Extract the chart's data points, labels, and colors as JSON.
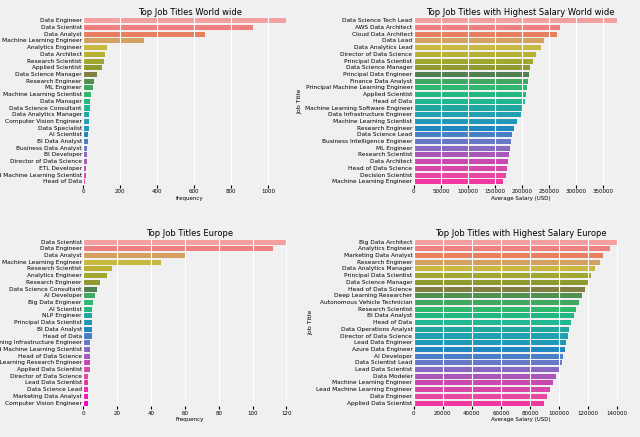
{
  "ww_titles": [
    "Data Engineer",
    "Data Scientist",
    "Data Analyst",
    "Machine Learning Engineer",
    "Analytics Engineer",
    "Data Architect",
    "Research Scientist",
    "Applied Scientist",
    "Data Science Manager",
    "Research Engineer",
    "ML Engineer",
    "Machine Learning Scientist",
    "Data Manager",
    "Data Science Consultant",
    "Data Analytics Manager",
    "Computer Vision Engineer",
    "Data Specialist",
    "AI Scientist",
    "BI Data Analyst",
    "Business Data Analyst",
    "BI Developer",
    "Director of Data Science",
    "ETL Developer",
    "Applied Machine Learning Scientist",
    "Head of Data"
  ],
  "ww_values": [
    1100,
    920,
    660,
    330,
    130,
    120,
    110,
    100,
    75,
    60,
    55,
    40,
    38,
    35,
    33,
    32,
    30,
    28,
    25,
    23,
    20,
    18,
    16,
    14,
    12
  ],
  "ww_colors": [
    "#f4a0a0",
    "#f08080",
    "#e88060",
    "#d4a060",
    "#c8b840",
    "#b8b030",
    "#a0a830",
    "#909830",
    "#808040",
    "#509050",
    "#40a860",
    "#30b870",
    "#20b880",
    "#20b890",
    "#20a8a0",
    "#20a0b0",
    "#2098b8",
    "#2088c0",
    "#4880c8",
    "#6878c8",
    "#8868c0",
    "#a858b8",
    "#c848b0",
    "#d848a8",
    "#e848a0"
  ],
  "ww_sal_titles": [
    "Data Science Tech Lead",
    "AWS Data Architect",
    "Cloud Data Architect",
    "Data Lead",
    "Data Analytics Lead",
    "Director of Data Science",
    "Principal Data Scientist",
    "Data Science Manager",
    "Principal Data Engineer",
    "Finance Data Analyst",
    "Principal Machine Learning Engineer",
    "Applied Scientist",
    "Head of Data",
    "Machine Learning Software Engineer",
    "Data Infrastructure Engineer",
    "Machine Learning Scientist",
    "Research Engineer",
    "Data Science Lead",
    "Business Intelligence Engineer",
    "ML Engineer",
    "Research Scientist",
    "Data Architect",
    "Head of Data Science",
    "Decision Scientist",
    "Machine Learning Engineer"
  ],
  "ww_sal_values": [
    375000,
    270000,
    265000,
    240000,
    235000,
    225000,
    220000,
    215000,
    212000,
    210000,
    208000,
    207000,
    205000,
    200000,
    198000,
    190000,
    185000,
    182000,
    180000,
    178000,
    176000,
    174000,
    172000,
    170000,
    165000
  ],
  "ww_sal_colors": [
    "#f4a0a0",
    "#f08080",
    "#e88060",
    "#d4a060",
    "#c8b840",
    "#b8b030",
    "#a0a830",
    "#909830",
    "#508050",
    "#40a860",
    "#30b870",
    "#20b880",
    "#20b890",
    "#20a8a0",
    "#20a0b0",
    "#2098b8",
    "#2088c0",
    "#4880c8",
    "#6878c8",
    "#8868c0",
    "#a858b8",
    "#c848b0",
    "#d848a8",
    "#e848a0",
    "#f038a0"
  ],
  "eu_titles": [
    "Data Scientist",
    "Data Engineer",
    "Data Analyst",
    "Machine Learning Engineer",
    "Research Scientist",
    "Analytics Engineer",
    "Research Engineer",
    "Data Science Consultant",
    "AI Developer",
    "Big Data Engineer",
    "AI Scientist",
    "NLP Engineer",
    "Principal Data Scientist",
    "BI Data Analyst",
    "Head of Data",
    "Machine Learning Infrastructure Engineer",
    "Applied Machine Learning Scientist",
    "Head of Data Science",
    "Machine Learning Research Engineer",
    "Applied Data Scientist",
    "Director of Data Science",
    "Lead Data Scientist",
    "Data Science Lead",
    "Marketing Data Analyst",
    "Computer Vision Engineer"
  ],
  "eu_values": [
    120,
    112,
    60,
    46,
    17,
    14,
    10,
    8,
    7,
    6,
    5,
    5,
    5,
    5,
    5,
    4,
    4,
    4,
    4,
    4,
    3,
    3,
    3,
    3,
    3
  ],
  "eu_colors": [
    "#f4a0a0",
    "#f08080",
    "#d4a060",
    "#c8b840",
    "#b8b030",
    "#a0a830",
    "#909830",
    "#508050",
    "#40a860",
    "#30b870",
    "#20b880",
    "#20a8a0",
    "#2098b8",
    "#2088c0",
    "#4880c8",
    "#6878c8",
    "#8868c0",
    "#a858b8",
    "#c848b0",
    "#d848a8",
    "#e848a0",
    "#f038a0",
    "#f828b0",
    "#f818c0",
    "#f808c8"
  ],
  "eu_sal_titles": [
    "Big Data Architect",
    "Analytics Engineer",
    "Marketing Data Analyst",
    "Research Engineer",
    "Data Analytics Manager",
    "Principal Data Scientist",
    "Data Science Manager",
    "Head of Data Science",
    "Deep Learning Researcher",
    "Autonomous Vehicle Technician",
    "Research Scientist",
    "BI Data Analyst",
    "Head of Data",
    "Data Operations Analyst",
    "Director of Data Science",
    "Lead Data Engineer",
    "Azure Data Engineer",
    "AI Developer",
    "Data Scientist Lead",
    "Lead Data Scientist",
    "Data Modeler",
    "Machine Learning Engineer",
    "Lead Machine Learning Engineer",
    "Data Engineer",
    "Applied Data Scientist"
  ],
  "eu_sal_values": [
    140000,
    135000,
    130000,
    128000,
    125000,
    122000,
    120000,
    118000,
    116000,
    114000,
    112000,
    110000,
    108000,
    107000,
    106000,
    105000,
    104000,
    103000,
    102000,
    100000,
    98000,
    96000,
    94000,
    92000,
    90000
  ],
  "eu_sal_colors": [
    "#f4a0a0",
    "#f08080",
    "#e88060",
    "#d4a060",
    "#c8b840",
    "#a0a830",
    "#909830",
    "#808040",
    "#509050",
    "#40a860",
    "#30b870",
    "#20b880",
    "#20b890",
    "#20a8a0",
    "#20a0b0",
    "#2098b8",
    "#2088c0",
    "#4880c8",
    "#6878c8",
    "#8868c0",
    "#a858b8",
    "#c848b0",
    "#d848a8",
    "#e848a0",
    "#f038a0"
  ],
  "bg_color": "#f0f0f0",
  "grid_color": "white",
  "title_fontsize": 6.0,
  "label_fontsize": 4.2,
  "tick_fontsize": 4.0,
  "ylabel_fontsize": 4.5,
  "bar_height": 0.75
}
